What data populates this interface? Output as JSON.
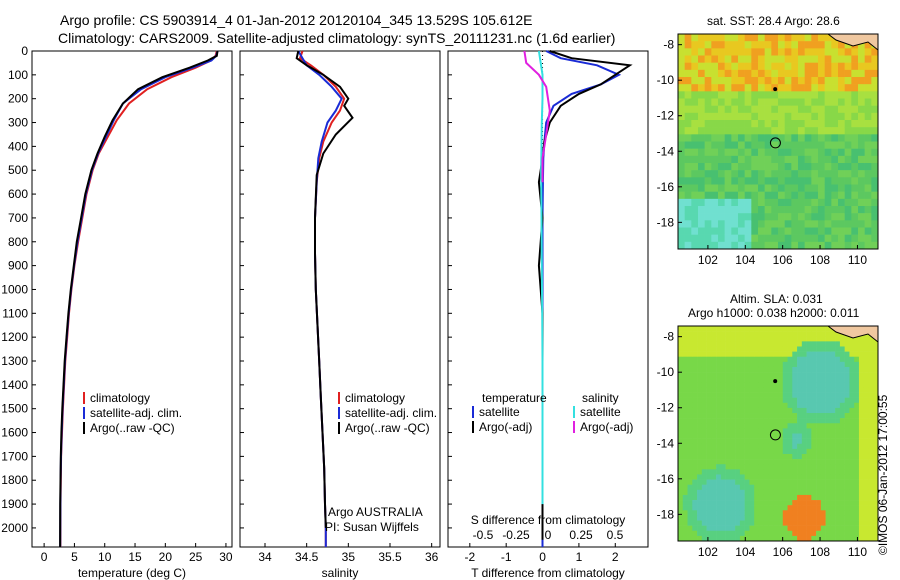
{
  "header": {
    "line1": "Argo profile: CS 5903914_4 01-Jan-2012 20120104_345 13.529S 105.612E",
    "line2": "Climatology: CARS2009. Satellite-adjusted climatology: synTS_20111231.nc (1.6d earlier)"
  },
  "map_top": {
    "label": "sat. SST: 28.4  Argo: 28.6",
    "ylabels": [
      "-8",
      "-10",
      "-12",
      "-14",
      "-16",
      "-18"
    ],
    "xlabels": [
      "102",
      "104",
      "106",
      "108",
      "110"
    ]
  },
  "map_bottom": {
    "label1": "Altim. SLA: 0.031",
    "label2": "Argo h1000: 0.038 h2000: 0.011",
    "ylabels": [
      "-8",
      "-10",
      "-12",
      "-14",
      "-16",
      "-18"
    ],
    "xlabels": [
      "102",
      "104",
      "106",
      "108",
      "110"
    ]
  },
  "side_label": "©IMOS 06-Jan-2012 17:00:55",
  "colors": {
    "climatology": "#e02020",
    "satellite": "#1a2bd6",
    "argo": "#000000",
    "sal_satellite": "#33e0e0",
    "sal_argo": "#e020e0"
  },
  "legends": {
    "temp_panel": [
      "climatology",
      "satellite-adj. clim.",
      "Argo(..raw -QC)"
    ],
    "sal_panel": [
      "climatology",
      "satellite-adj. clim.",
      "Argo(..raw -QC)"
    ],
    "diff_temperature_header": "temperature",
    "diff_salinity_header": "salinity",
    "diff_items_left": [
      "satellite",
      "Argo(-adj)"
    ],
    "diff_items_right": [
      "satellite",
      "Argo(-adj)"
    ]
  },
  "annotations": {
    "argo_country": "Argo AUSTRALIA",
    "pi": "PI: Susan Wijffels",
    "s_diff_label": "S difference from climatology",
    "s_diff_ticks": [
      "-0.5",
      "-0.25",
      "0",
      "0.25",
      "0.5"
    ]
  },
  "chart_data": [
    {
      "type": "line",
      "xlabel": "temperature (deg C)",
      "ylabel": "",
      "xlim": [
        -2,
        31
      ],
      "ylim": [
        2080,
        0
      ],
      "xticks": [
        0,
        5,
        10,
        15,
        20,
        25,
        30
      ],
      "yticks": [
        0,
        100,
        200,
        300,
        400,
        500,
        600,
        700,
        800,
        900,
        1000,
        1100,
        1200,
        1300,
        1400,
        1500,
        1600,
        1700,
        1800,
        1900,
        2000
      ],
      "series": [
        {
          "name": "climatology",
          "x": [
            28.5,
            28.3,
            27.5,
            25,
            21,
            17,
            14,
            12,
            10.5,
            9,
            8,
            7,
            6.3,
            5.6,
            5,
            4.5,
            4.1,
            3.8,
            3.5,
            3.3,
            3.1,
            2.95,
            2.8,
            2.75,
            2.7,
            2.68
          ],
          "y": [
            0,
            20,
            40,
            70,
            110,
            160,
            220,
            290,
            360,
            430,
            500,
            600,
            700,
            800,
            900,
            1000,
            1100,
            1200,
            1300,
            1400,
            1500,
            1600,
            1700,
            1800,
            1900,
            2080
          ]
        },
        {
          "name": "satellite-adj. clim.",
          "x": [
            28.6,
            28.4,
            27.6,
            24.5,
            20,
            16,
            13,
            11.5,
            10.2,
            8.9,
            7.9,
            6.9,
            6.2,
            5.5,
            4.95,
            4.45,
            4.05,
            3.75,
            3.45,
            3.25,
            3.05,
            2.9,
            2.78,
            2.72,
            2.68,
            2.66
          ],
          "y": [
            0,
            20,
            40,
            70,
            110,
            160,
            220,
            290,
            360,
            430,
            500,
            600,
            700,
            800,
            900,
            1000,
            1100,
            1200,
            1300,
            1400,
            1500,
            1600,
            1700,
            1800,
            1900,
            2080
          ]
        },
        {
          "name": "Argo(..raw -QC)",
          "x": [
            28.6,
            28.5,
            27,
            24,
            19.5,
            15.5,
            13,
            11.3,
            10,
            8.8,
            7.8,
            6.8,
            6.1,
            5.4,
            4.9,
            4.4,
            4,
            3.7,
            3.4,
            3.2,
            3,
            2.85,
            2.75,
            2.7,
            2.66,
            2.64
          ],
          "y": [
            0,
            20,
            40,
            70,
            110,
            160,
            220,
            290,
            360,
            430,
            500,
            600,
            700,
            800,
            900,
            1000,
            1100,
            1200,
            1300,
            1400,
            1500,
            1600,
            1700,
            1800,
            1900,
            2080
          ]
        }
      ]
    },
    {
      "type": "line",
      "xlabel": "salinity",
      "xlim": [
        33.7,
        36.1
      ],
      "ylim": [
        2080,
        0
      ],
      "xticks": [
        34,
        34.5,
        35,
        35.5,
        36
      ],
      "series": [
        {
          "name": "climatology",
          "x": [
            34.45,
            34.42,
            34.55,
            34.7,
            34.85,
            34.95,
            34.9,
            34.8,
            34.7,
            34.65,
            34.62,
            34.6,
            34.6,
            34.61,
            34.63,
            34.65,
            34.67,
            34.69,
            34.71,
            34.72,
            34.73,
            34.73
          ],
          "y": [
            0,
            30,
            60,
            100,
            150,
            200,
            250,
            300,
            380,
            450,
            550,
            700,
            850,
            1000,
            1150,
            1300,
            1450,
            1600,
            1750,
            1900,
            2000,
            2080
          ]
        },
        {
          "name": "satellite-adj. clim.",
          "x": [
            34.4,
            34.45,
            34.5,
            34.65,
            34.8,
            34.92,
            34.85,
            34.75,
            34.68,
            34.64,
            34.62,
            34.6,
            34.6,
            34.61,
            34.63,
            34.65,
            34.67,
            34.69,
            34.71,
            34.72,
            34.73,
            34.73
          ],
          "y": [
            0,
            30,
            60,
            100,
            150,
            200,
            250,
            300,
            380,
            450,
            550,
            700,
            850,
            1000,
            1150,
            1300,
            1450,
            1600,
            1750,
            1900,
            2000,
            2080
          ]
        },
        {
          "name": "Argo(..raw -QC)",
          "x": [
            34.4,
            34.38,
            34.5,
            34.7,
            34.9,
            35.0,
            34.95,
            35.05,
            34.85,
            34.7,
            34.62,
            34.6,
            34.6,
            34.61,
            34.63,
            34.65,
            34.67,
            34.69,
            34.71,
            34.72,
            34.73
          ],
          "y": [
            0,
            30,
            60,
            100,
            150,
            200,
            230,
            280,
            350,
            430,
            520,
            700,
            850,
            1000,
            1150,
            1300,
            1450,
            1600,
            1750,
            1900,
            2000
          ]
        }
      ]
    },
    {
      "type": "line",
      "xlabel": "T difference from climatology",
      "xlim": [
        -2.6,
        2.9
      ],
      "ylim": [
        2080,
        0
      ],
      "xticks": [
        -2,
        -1,
        0,
        1,
        2
      ],
      "series": [
        {
          "name": "temperature satellite",
          "x": [
            0.1,
            0.5,
            1.5,
            2.1,
            1.6,
            0.8,
            0.3,
            0.1,
            0.05,
            0.02,
            0.01,
            0.0,
            0.0,
            0.0,
            0.0,
            0.0,
            0.0,
            0.0,
            0.0
          ],
          "y": [
            0,
            30,
            60,
            100,
            140,
            180,
            230,
            300,
            380,
            450,
            550,
            700,
            900,
            1100,
            1300,
            1500,
            1700,
            1900,
            2080
          ]
        },
        {
          "name": "temperature Argo(-adj)",
          "x": [
            0.2,
            0.8,
            2.4,
            2.0,
            1.6,
            1.0,
            0.5,
            0.2,
            0.05,
            0.0,
            -0.1,
            0.0,
            -0.1,
            0.0,
            0.0,
            0.0,
            0.0,
            0.0,
            0.0
          ],
          "y": [
            0,
            30,
            60,
            100,
            140,
            180,
            230,
            300,
            380,
            450,
            550,
            700,
            900,
            1100,
            1300,
            1500,
            1700,
            1900,
            2050
          ]
        },
        {
          "name": "salinity satellite",
          "x": [
            -0.1,
            -0.05,
            0.0,
            0.0,
            -0.02,
            -0.03,
            -0.04,
            -0.03,
            -0.02,
            -0.01,
            0.0,
            0.0,
            0.0,
            0.0
          ],
          "y": [
            0,
            50,
            100,
            200,
            300,
            400,
            500,
            700,
            900,
            1100,
            1300,
            1500,
            1700,
            1900
          ]
        },
        {
          "name": "salinity Argo(-adj)",
          "x": [
            -0.5,
            -0.45,
            -0.1,
            0.1,
            0.2,
            0.1,
            0.0,
            0.0
          ],
          "y": [
            0,
            50,
            100,
            150,
            250,
            350,
            450,
            550
          ]
        }
      ]
    }
  ]
}
